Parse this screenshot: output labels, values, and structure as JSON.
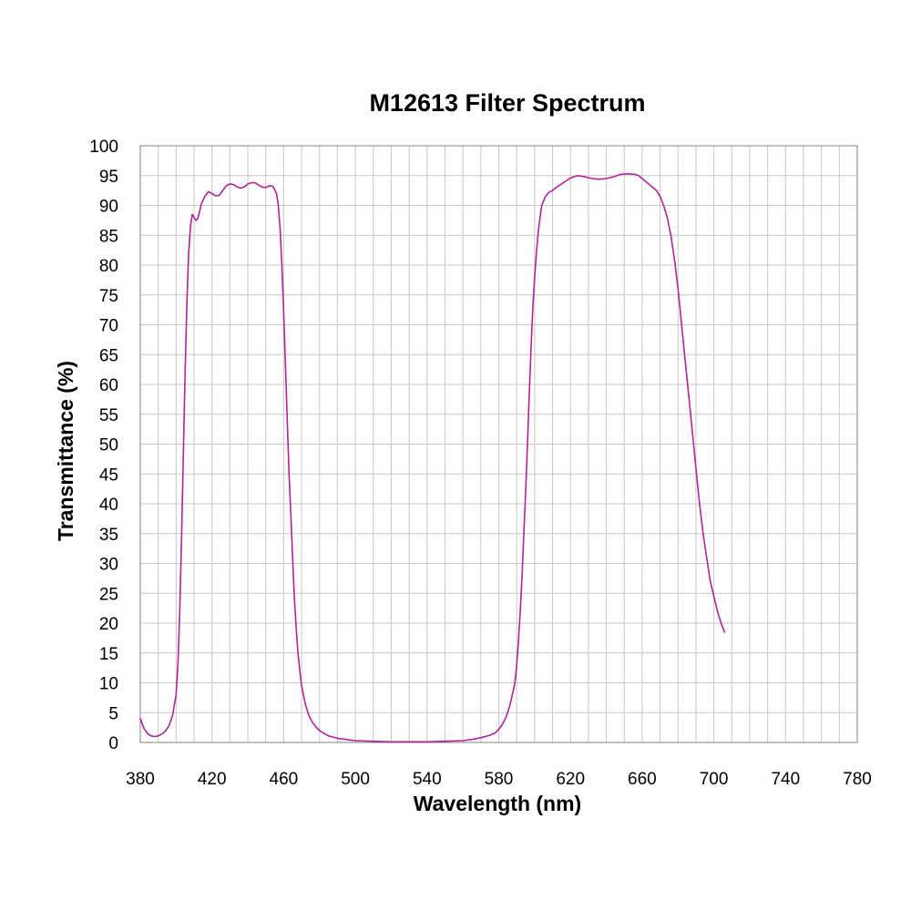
{
  "chart_data": {
    "type": "line",
    "title": "M12613 Filter Spectrum",
    "xlabel": "Wavelength (nm)",
    "ylabel": "Transmittance (%)",
    "xlim": [
      380,
      780
    ],
    "ylim": [
      0,
      100
    ],
    "x_ticks": [
      380,
      420,
      460,
      500,
      540,
      580,
      620,
      660,
      700,
      740,
      780
    ],
    "y_ticks": [
      0,
      5,
      10,
      15,
      20,
      25,
      30,
      35,
      40,
      45,
      50,
      55,
      60,
      65,
      70,
      75,
      80,
      85,
      90,
      95,
      100
    ],
    "x_minor_step": 10,
    "y_minor_step": 5,
    "grid": true,
    "legend": "none",
    "line_color": "#b0239b",
    "series": [
      {
        "points": [
          [
            380,
            4.0
          ],
          [
            382,
            2.4
          ],
          [
            384,
            1.5
          ],
          [
            386,
            1.1
          ],
          [
            388,
            1.0
          ],
          [
            390,
            1.1
          ],
          [
            392,
            1.4
          ],
          [
            394,
            1.9
          ],
          [
            396,
            2.8
          ],
          [
            398,
            4.5
          ],
          [
            400,
            8.0
          ],
          [
            401,
            13.0
          ],
          [
            402,
            22.0
          ],
          [
            403,
            34.0
          ],
          [
            404,
            48.0
          ],
          [
            405,
            62.0
          ],
          [
            406,
            74.0
          ],
          [
            407,
            82.0
          ],
          [
            408,
            86.5
          ],
          [
            409,
            88.5
          ],
          [
            410,
            88.0
          ],
          [
            411,
            87.5
          ],
          [
            412,
            87.8
          ],
          [
            413,
            88.8
          ],
          [
            414,
            90.2
          ],
          [
            416,
            91.5
          ],
          [
            418,
            92.3
          ],
          [
            420,
            92.0
          ],
          [
            422,
            91.6
          ],
          [
            424,
            91.7
          ],
          [
            426,
            92.5
          ],
          [
            428,
            93.3
          ],
          [
            430,
            93.6
          ],
          [
            432,
            93.5
          ],
          [
            434,
            93.1
          ],
          [
            436,
            92.9
          ],
          [
            438,
            93.1
          ],
          [
            440,
            93.6
          ],
          [
            442,
            93.8
          ],
          [
            444,
            93.8
          ],
          [
            446,
            93.4
          ],
          [
            448,
            93.1
          ],
          [
            450,
            93.0
          ],
          [
            452,
            93.3
          ],
          [
            454,
            93.2
          ],
          [
            456,
            92.0
          ],
          [
            457,
            90.0
          ],
          [
            458,
            86.0
          ],
          [
            459,
            80.0
          ],
          [
            460,
            72.0
          ],
          [
            461,
            63.0
          ],
          [
            462,
            54.0
          ],
          [
            463,
            45.0
          ],
          [
            464,
            38.0
          ],
          [
            465,
            31.0
          ],
          [
            466,
            24.0
          ],
          [
            467,
            19.0
          ],
          [
            468,
            15.0
          ],
          [
            469,
            12.0
          ],
          [
            470,
            9.5
          ],
          [
            472,
            6.5
          ],
          [
            474,
            4.6
          ],
          [
            476,
            3.4
          ],
          [
            478,
            2.6
          ],
          [
            480,
            2.0
          ],
          [
            482,
            1.6
          ],
          [
            485,
            1.1
          ],
          [
            490,
            0.7
          ],
          [
            495,
            0.5
          ],
          [
            500,
            0.3
          ],
          [
            510,
            0.2
          ],
          [
            520,
            0.1
          ],
          [
            530,
            0.1
          ],
          [
            540,
            0.1
          ],
          [
            550,
            0.2
          ],
          [
            560,
            0.3
          ],
          [
            565,
            0.5
          ],
          [
            570,
            0.8
          ],
          [
            575,
            1.2
          ],
          [
            578,
            1.6
          ],
          [
            580,
            2.2
          ],
          [
            582,
            3.0
          ],
          [
            584,
            4.2
          ],
          [
            586,
            6.0
          ],
          [
            588,
            8.5
          ],
          [
            589,
            10.0
          ],
          [
            590,
            13.0
          ],
          [
            591,
            17.0
          ],
          [
            592,
            22.0
          ],
          [
            593,
            28.0
          ],
          [
            594,
            35.0
          ],
          [
            595,
            42.0
          ],
          [
            596,
            50.0
          ],
          [
            597,
            58.0
          ],
          [
            598,
            66.0
          ],
          [
            599,
            73.0
          ],
          [
            600,
            78.0
          ],
          [
            601,
            82.0
          ],
          [
            602,
            85.5
          ],
          [
            603,
            88.0
          ],
          [
            604,
            90.0
          ],
          [
            606,
            91.5
          ],
          [
            608,
            92.2
          ],
          [
            610,
            92.5
          ],
          [
            612,
            93.0
          ],
          [
            614,
            93.4
          ],
          [
            616,
            93.8
          ],
          [
            618,
            94.2
          ],
          [
            620,
            94.6
          ],
          [
            624,
            95.0
          ],
          [
            628,
            94.8
          ],
          [
            632,
            94.5
          ],
          [
            636,
            94.4
          ],
          [
            640,
            94.5
          ],
          [
            644,
            94.8
          ],
          [
            648,
            95.2
          ],
          [
            652,
            95.3
          ],
          [
            656,
            95.2
          ],
          [
            658,
            95.0
          ],
          [
            660,
            94.5
          ],
          [
            662,
            94.0
          ],
          [
            664,
            93.5
          ],
          [
            666,
            93.0
          ],
          [
            668,
            92.5
          ],
          [
            670,
            91.5
          ],
          [
            672,
            90.0
          ],
          [
            674,
            88.0
          ],
          [
            676,
            85.0
          ],
          [
            678,
            81.0
          ],
          [
            680,
            76.0
          ],
          [
            682,
            70.0
          ],
          [
            684,
            64.0
          ],
          [
            686,
            58.0
          ],
          [
            688,
            52.0
          ],
          [
            690,
            46.0
          ],
          [
            692,
            40.0
          ],
          [
            694,
            35.0
          ],
          [
            696,
            31.0
          ],
          [
            698,
            27.0
          ],
          [
            700,
            24.5
          ],
          [
            702,
            22.0
          ],
          [
            704,
            20.0
          ],
          [
            706,
            18.5
          ]
        ]
      }
    ]
  }
}
